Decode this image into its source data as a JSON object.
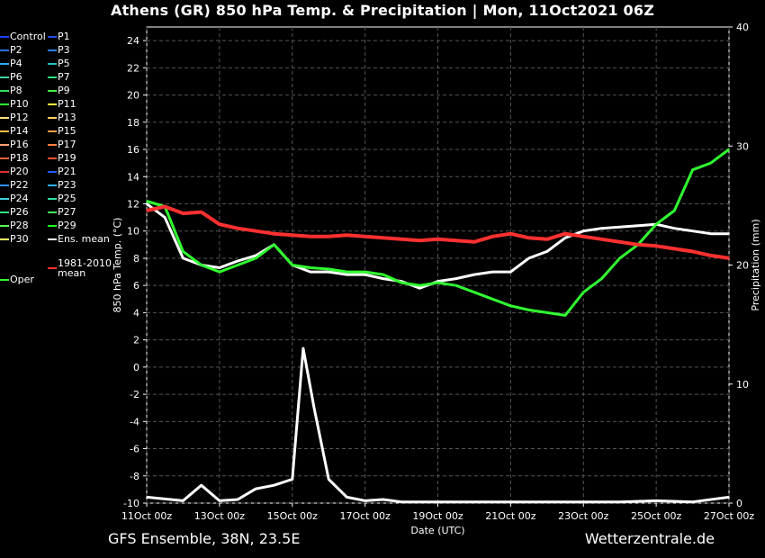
{
  "title": "Athens  (GR)  850 hPa Temp. & Precipitation | Mon, 11Oct2021 06Z",
  "footer": {
    "left": "GFS Ensemble, 38N, 23.5E",
    "right": "Wetterzentrale.de"
  },
  "chart_data": {
    "type": "line",
    "xlabel": "Date (UTC)",
    "ylabel": "850 hPa Temp. (°C)",
    "y2label": "Precipitation (mm)",
    "ylim": [
      -10,
      25
    ],
    "y2lim": [
      0,
      40
    ],
    "xlim_days": [
      0,
      16
    ],
    "x_ticks": [
      "11Oct 00z",
      "13Oct 00z",
      "15Oct 00z",
      "17Oct 00z",
      "19Oct 00z",
      "21Oct 00z",
      "23Oct 00z",
      "25Oct 00z",
      "27Oct 00z"
    ],
    "y_ticks": [
      -10,
      -8,
      -6,
      -4,
      -2,
      0,
      2,
      4,
      6,
      8,
      10,
      12,
      14,
      16,
      18,
      20,
      22,
      24
    ],
    "y2_ticks": [
      0,
      10,
      20,
      30,
      40
    ],
    "grid": true,
    "legend": [
      {
        "name": "Control",
        "color": "#2040ff"
      },
      {
        "name": "P1",
        "color": "#2050e0"
      },
      {
        "name": "P2",
        "color": "#3070ff"
      },
      {
        "name": "P3",
        "color": "#2a7fff"
      },
      {
        "name": "P4",
        "color": "#2aaaff"
      },
      {
        "name": "P5",
        "color": "#20c0c0"
      },
      {
        "name": "P6",
        "color": "#40d0a0"
      },
      {
        "name": "P7",
        "color": "#30e080"
      },
      {
        "name": "P8",
        "color": "#30e060"
      },
      {
        "name": "P9",
        "color": "#40f040"
      },
      {
        "name": "P10",
        "color": "#30ff30"
      },
      {
        "name": "P11",
        "color": "#ffff40"
      },
      {
        "name": "P12",
        "color": "#ffe080"
      },
      {
        "name": "P13",
        "color": "#ffd060"
      },
      {
        "name": "P14",
        "color": "#ffc040"
      },
      {
        "name": "P15",
        "color": "#ffa040"
      },
      {
        "name": "P16",
        "color": "#ffa070"
      },
      {
        "name": "P17",
        "color": "#ff8040"
      },
      {
        "name": "P18",
        "color": "#ff6040"
      },
      {
        "name": "P19",
        "color": "#ff5030"
      },
      {
        "name": "P20",
        "color": "#e03030"
      },
      {
        "name": "P21",
        "color": "#2060ff"
      },
      {
        "name": "P22",
        "color": "#3090ff"
      },
      {
        "name": "P23",
        "color": "#30b0ff"
      },
      {
        "name": "P24",
        "color": "#40d0e0"
      },
      {
        "name": "P25",
        "color": "#30e0a0"
      },
      {
        "name": "P26",
        "color": "#30e080"
      },
      {
        "name": "P27",
        "color": "#40f060"
      },
      {
        "name": "P28",
        "color": "#50ff50"
      },
      {
        "name": "P29",
        "color": "#20ff20"
      },
      {
        "name": "P30",
        "color": "#ffff60"
      },
      {
        "name": "Ens. mean",
        "color": "#ffffff"
      },
      {
        "name": "Oper",
        "color": "#30ff30"
      },
      {
        "name": "1981-2010 mean",
        "color": "#ff3030"
      }
    ],
    "series": [
      {
        "name": "Ens. mean",
        "color": "#ffffff",
        "x": [
          0,
          0.5,
          1,
          1.5,
          2,
          2.5,
          3,
          3.5,
          4,
          4.5,
          5,
          5.5,
          6,
          6.5,
          7,
          7.5,
          8,
          8.5,
          9,
          9.5,
          10,
          10.5,
          11,
          11.5,
          12,
          12.5,
          13,
          13.5,
          14,
          14.5,
          15,
          15.5,
          16
        ],
        "y": [
          12,
          11,
          8,
          7.5,
          7.3,
          7.8,
          8.2,
          9,
          7.5,
          7,
          7,
          6.8,
          6.8,
          6.5,
          6.3,
          5.8,
          6.3,
          6.5,
          6.8,
          7,
          7,
          8,
          8.5,
          9.5,
          10,
          10.2,
          10.3,
          10.4,
          10.5,
          10.2,
          10,
          9.8,
          9.8
        ]
      },
      {
        "name": "Oper",
        "color": "#30ff30",
        "x": [
          0,
          0.5,
          1,
          1.5,
          2,
          2.5,
          3,
          3.5,
          4,
          4.5,
          5,
          5.5,
          6,
          6.5,
          7,
          7.5,
          8,
          8.5,
          9,
          9.5,
          10,
          10.5,
          11,
          11.5,
          12,
          12.5,
          13,
          13.5,
          14,
          14.5,
          15,
          15.5,
          16
        ],
        "y": [
          12.2,
          11.8,
          8.5,
          7.5,
          7,
          7.5,
          8,
          9,
          7.5,
          7.3,
          7.2,
          7,
          7,
          6.8,
          6.2,
          6,
          6.2,
          6,
          5.5,
          5,
          4.5,
          4.2,
          4,
          3.8,
          5.5,
          6.5,
          8,
          9,
          10.5,
          11.5,
          14.5,
          15,
          16
        ]
      },
      {
        "name": "1981-2010 mean",
        "color": "#ff3030",
        "x": [
          0,
          0.5,
          1,
          1.5,
          2,
          2.5,
          3,
          3.5,
          4,
          4.5,
          5,
          5.5,
          6,
          6.5,
          7,
          7.5,
          8,
          8.5,
          9,
          9.5,
          10,
          10.5,
          11,
          11.5,
          12,
          12.5,
          13,
          13.5,
          14,
          14.5,
          15,
          15.5,
          16
        ],
        "y": [
          11.5,
          11.8,
          11.3,
          11.4,
          10.5,
          10.2,
          10,
          9.8,
          9.7,
          9.6,
          9.6,
          9.7,
          9.6,
          9.5,
          9.4,
          9.3,
          9.4,
          9.3,
          9.2,
          9.6,
          9.8,
          9.5,
          9.4,
          9.8,
          9.6,
          9.4,
          9.2,
          9.0,
          8.9,
          8.7,
          8.5,
          8.2,
          8
        ]
      },
      {
        "name": "Ens. mean precip",
        "color": "#ffffff",
        "axis": "y2",
        "x": [
          0,
          1,
          1.5,
          2,
          2.5,
          3,
          3.5,
          4,
          4.3,
          4.6,
          5,
          5.5,
          6,
          6.5,
          7,
          8,
          9,
          10,
          11,
          12,
          13,
          14,
          15,
          16
        ],
        "y": [
          0.5,
          0.2,
          1.5,
          0.2,
          0.3,
          1.2,
          1.5,
          2,
          13,
          8,
          2,
          0.5,
          0.2,
          0.3,
          0.1,
          0.1,
          0.1,
          0.1,
          0.1,
          0.1,
          0.1,
          0.2,
          0.1,
          0.5
        ]
      }
    ]
  }
}
